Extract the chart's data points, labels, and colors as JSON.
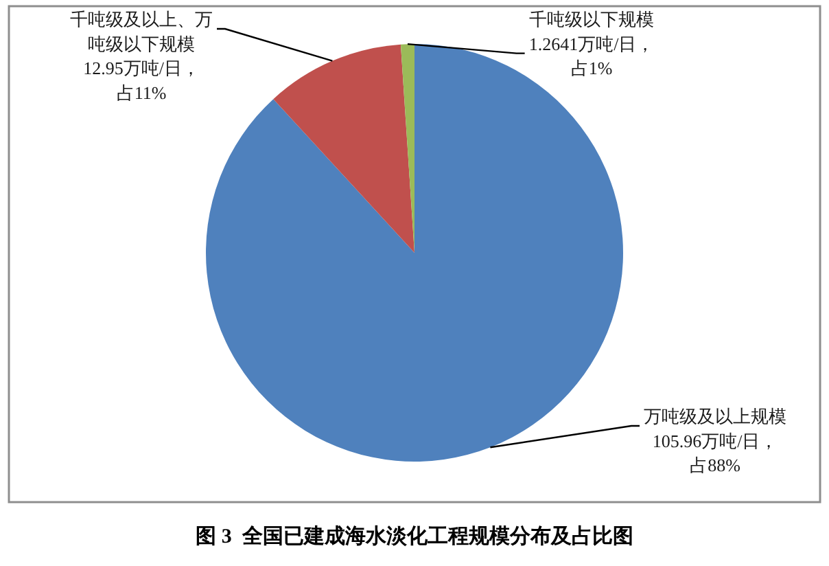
{
  "chart_data": {
    "type": "pie",
    "title": "图 3  全国已建成海水淡化工程规模分布及占比图",
    "categories": [
      "万吨级及以上规模",
      "千吨级及以上、万吨级以下规模",
      "千吨级以下规模"
    ],
    "values": [
      105.96,
      12.95,
      1.2641
    ],
    "colors": [
      "#4f81bd",
      "#c0504d",
      "#9bbb59"
    ],
    "value_labels": [
      "105.96万吨/日，占88%",
      "12.95万吨/日，占11%",
      "1.2641万吨/日，占1%"
    ]
  }
}
